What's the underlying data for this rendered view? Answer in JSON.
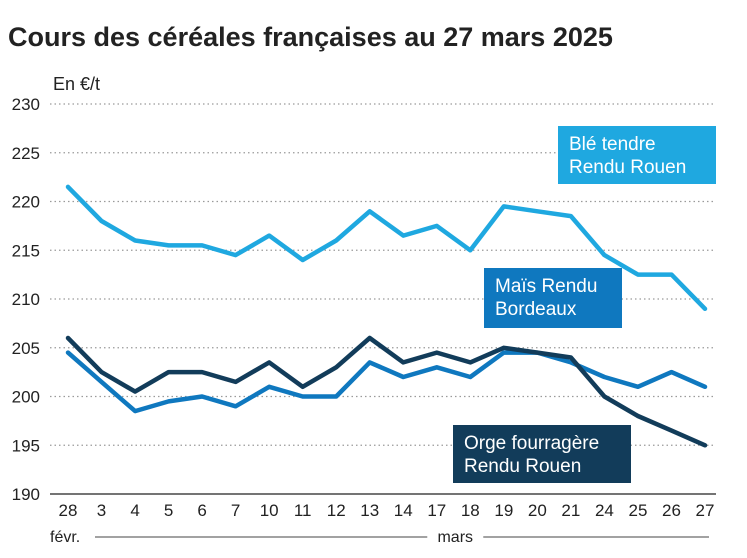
{
  "chart_data": {
    "type": "line",
    "title": "Cours des céréales françaises au 27 mars 2025",
    "ylabel": "En €/t",
    "xlabel": "",
    "ylim": [
      190,
      230
    ],
    "yticks": [
      190,
      195,
      200,
      205,
      210,
      215,
      220,
      225,
      230
    ],
    "categories": [
      "28",
      "3",
      "4",
      "5",
      "6",
      "7",
      "10",
      "11",
      "12",
      "13",
      "14",
      "17",
      "18",
      "19",
      "20",
      "21",
      "24",
      "25",
      "26",
      "27"
    ],
    "months": [
      {
        "label": "févr.",
        "from": "28",
        "to": "28"
      },
      {
        "label": "mars",
        "from": "3",
        "to": "27"
      }
    ],
    "grid": "horizontal dotted",
    "series": [
      {
        "name": "Blé tendre Rendu Rouen",
        "label_lines": [
          "Blé tendre",
          "Rendu Rouen"
        ],
        "color": "#1fa8e0",
        "values": [
          221.5,
          218,
          216,
          215.5,
          215.5,
          214.5,
          216.5,
          214,
          216,
          219,
          216.5,
          217.5,
          215,
          219.5,
          219,
          218.5,
          214.5,
          212.5,
          212.5,
          209
        ]
      },
      {
        "name": "Maïs Rendu Bordeaux",
        "label_lines": [
          "Maïs Rendu",
          "Bordeaux"
        ],
        "color": "#0f78bf",
        "values": [
          204.5,
          201.5,
          198.5,
          199.5,
          200,
          199,
          201,
          200,
          200,
          203.5,
          202,
          203,
          202,
          204.5,
          204.5,
          203.5,
          202,
          201,
          202.5,
          201
        ]
      },
      {
        "name": "Orge fourragère Rendu Rouen",
        "label_lines": [
          "Orge fourragère",
          "Rendu Rouen"
        ],
        "color": "#123c5a",
        "values": [
          206,
          202.5,
          200.5,
          202.5,
          202.5,
          201.5,
          203.5,
          201,
          203,
          206,
          203.5,
          204.5,
          203.5,
          205,
          204.5,
          204,
          200,
          198,
          196.5,
          195
        ]
      }
    ]
  }
}
